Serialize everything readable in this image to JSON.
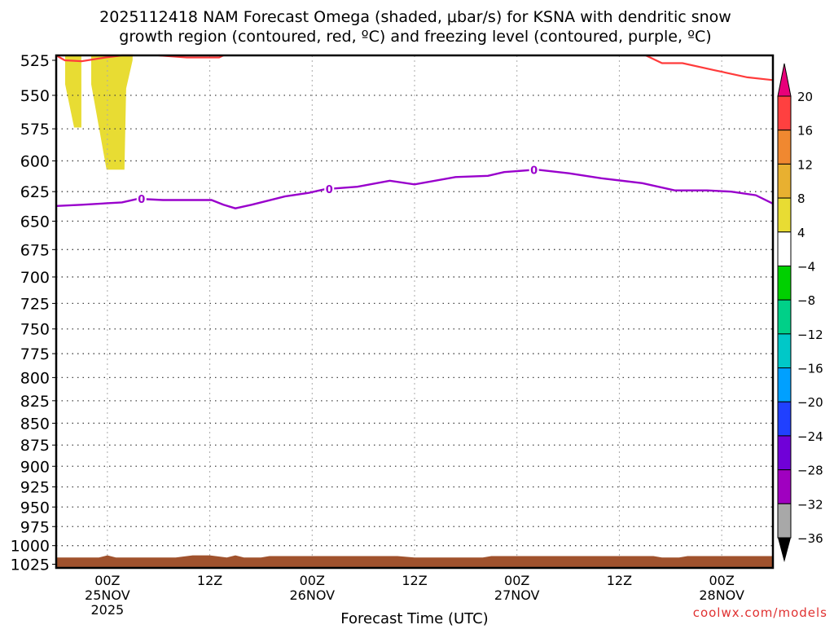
{
  "chart_data": {
    "type": "area",
    "title_line1": "2025112418 NAM Forecast Omega (shaded, μbar/s) for KSNA with dendritic snow",
    "title_line2": "growth region (contoured, red, ºC) and freezing level (contoured, purple, ºC)",
    "xlabel": "Forecast Time (UTC)",
    "credit": "coolwx.com/models",
    "xlim_hours": [
      0,
      84
    ],
    "ylim_hpa": [
      1030,
      521.6
    ],
    "y_ticks": [
      525,
      550,
      575,
      600,
      625,
      650,
      675,
      700,
      725,
      750,
      775,
      800,
      825,
      850,
      875,
      900,
      925,
      950,
      975,
      1000,
      1025
    ],
    "x_ticks": [
      {
        "hour": 6,
        "lines": [
          "00Z",
          "25NOV",
          "2025"
        ]
      },
      {
        "hour": 18,
        "lines": [
          "12Z"
        ]
      },
      {
        "hour": 30,
        "lines": [
          "00Z",
          "26NOV"
        ]
      },
      {
        "hour": 42,
        "lines": [
          "12Z"
        ]
      },
      {
        "hour": 54,
        "lines": [
          "00Z",
          "27NOV"
        ]
      },
      {
        "hour": 66,
        "lines": [
          "12Z"
        ]
      },
      {
        "hour": 78,
        "lines": [
          "00Z",
          "28NOV"
        ]
      }
    ],
    "freezing_level": {
      "label": "0",
      "color": "#9900cc",
      "label_hours": [
        10,
        32,
        56
      ],
      "hours": [
        0,
        3,
        7.7,
        9.6,
        12.5,
        16.3,
        18.2,
        19.6,
        21,
        22.9,
        26.8,
        29.6,
        31.5,
        35.3,
        39.1,
        42,
        46.8,
        50.6,
        52.5,
        56.3,
        60.1,
        63.9,
        68.7,
        72.5,
        76.3,
        79.1,
        82,
        84
      ],
      "hpa": [
        637,
        636,
        634,
        631,
        632,
        632,
        632,
        636,
        639,
        636,
        629,
        626,
        623,
        621,
        616,
        619,
        613,
        612,
        609,
        607,
        610,
        614,
        618,
        624,
        624,
        625,
        628,
        635
      ]
    },
    "dgz_red": {
      "color": "#ff3b3b",
      "segments": [
        {
          "hours": [
            0,
            1,
            3,
            5.8,
            7.7,
            9
          ],
          "hpa": [
            521.6,
            525,
            525.6,
            523,
            521.6,
            521.6
          ]
        },
        {
          "hours": [
            12,
            15.3,
            19.1,
            19.6
          ],
          "hpa": [
            521.6,
            523,
            523,
            521.6
          ]
        },
        {
          "hours": [
            69.1,
            71,
            73.4,
            77.2,
            81,
            84
          ],
          "hpa": [
            521.6,
            527,
            527,
            532,
            537,
            539
          ]
        }
      ]
    },
    "omega_regions": [
      {
        "value_range": "4 to 8",
        "color": "#e8dc33",
        "hours": [
          1.05,
          2.95,
          2.95,
          2.1,
          1.05
        ],
        "hpa": [
          521.6,
          521.6,
          574,
          574,
          542
        ]
      },
      {
        "value_range": "4 to 8",
        "color": "#e8dc33",
        "hours": [
          4.1,
          8.95,
          8.95,
          8.2,
          8,
          5.9,
          4.1
        ],
        "hpa": [
          521.6,
          521.6,
          525,
          545,
          607,
          607,
          542
        ]
      }
    ],
    "surface": {
      "color": "#a0522d",
      "hours": [
        0,
        5,
        6,
        7,
        14,
        16,
        18,
        20,
        21,
        22,
        24,
        25,
        30,
        40,
        42,
        50,
        51,
        60,
        62,
        64,
        66,
        70,
        71,
        73,
        74,
        76,
        78,
        84
      ],
      "hpa": [
        1016,
        1016,
        1013,
        1016,
        1016,
        1013,
        1013,
        1016,
        1013,
        1016,
        1016,
        1014,
        1014,
        1014,
        1016,
        1016,
        1014,
        1014,
        1014,
        1014,
        1014,
        1014,
        1016,
        1016,
        1014,
        1014,
        1014,
        1014
      ]
    },
    "colorbar": {
      "labels": [
        "20",
        "16",
        "12",
        "8",
        "4",
        "−4",
        "−8",
        "−12",
        "−16",
        "−20",
        "−24",
        "−28",
        "−32",
        "−36"
      ],
      "colors": [
        "#ff4040",
        "#f08830",
        "#e8b030",
        "#e8dc33",
        "#ffffff",
        "#00d000",
        "#00d088",
        "#00c8c8",
        "#00a0ff",
        "#2040ff",
        "#7000d8",
        "#a000c0",
        "#a8a8a8"
      ],
      "top_arrow": "#e8007a",
      "bottom_arrow": "#000000"
    }
  }
}
